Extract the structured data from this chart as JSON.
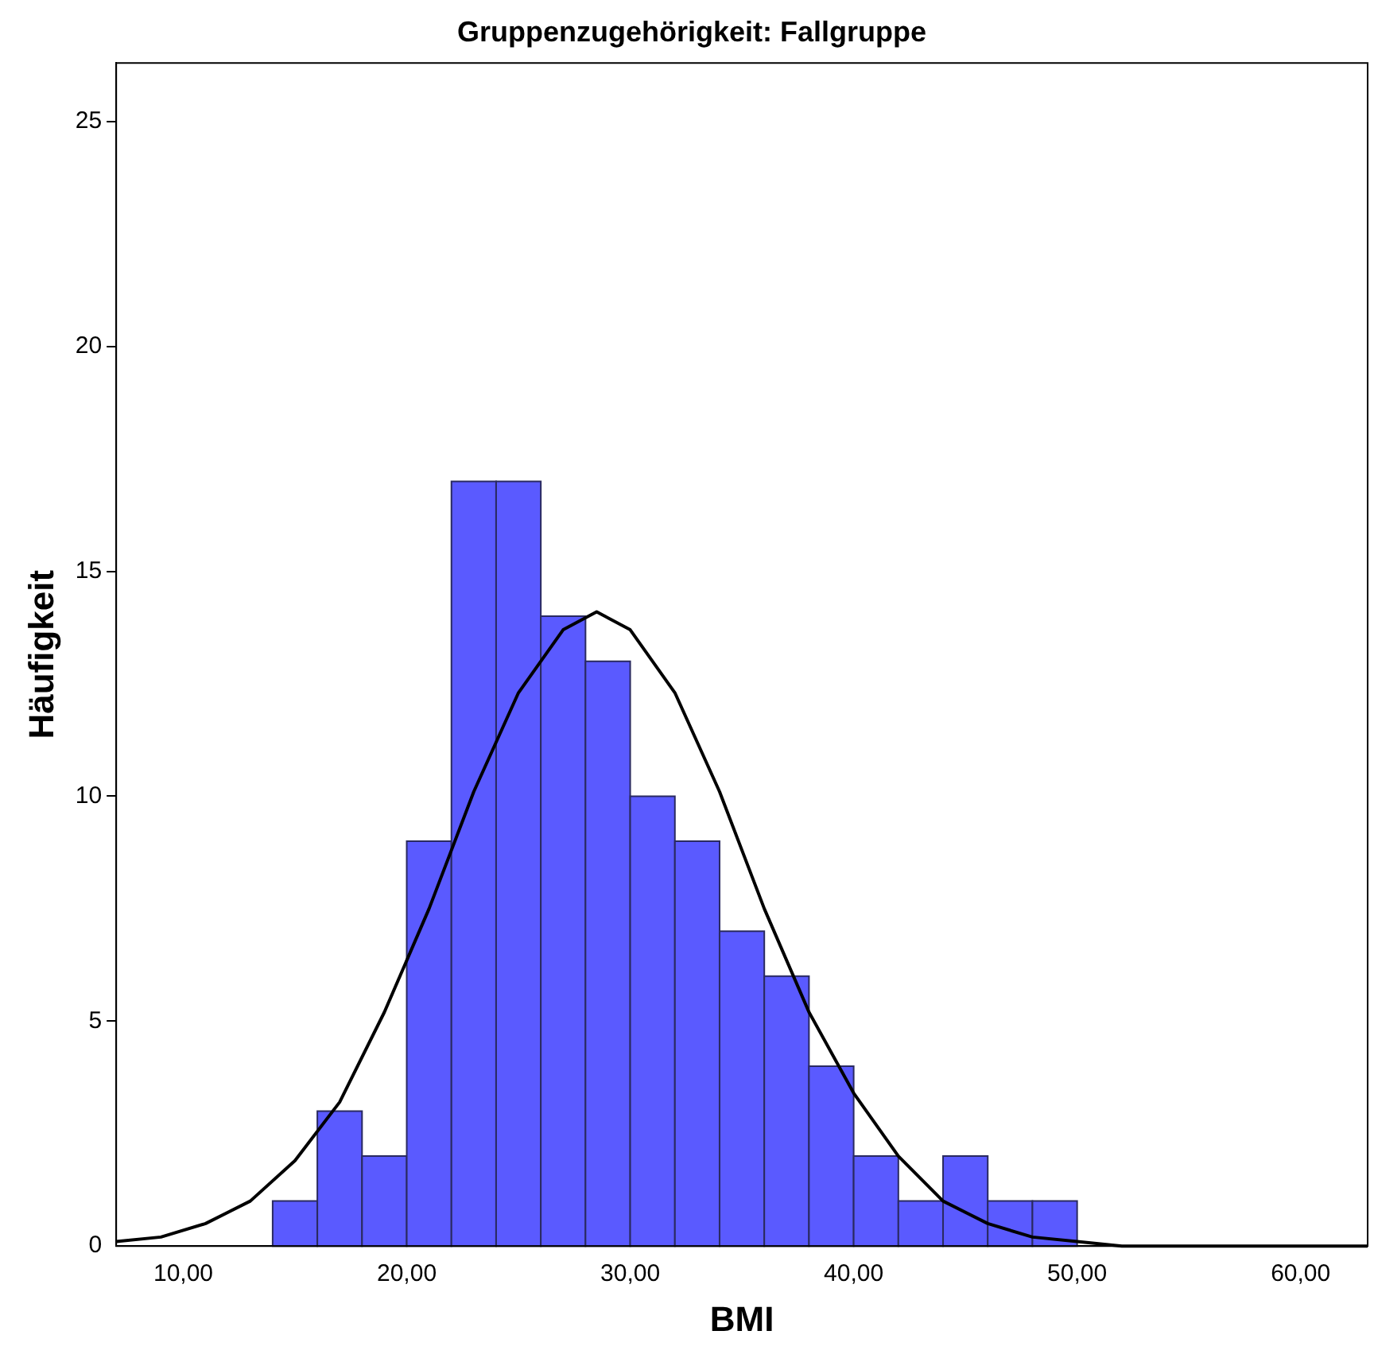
{
  "chart_data": {
    "type": "histogram",
    "title": "Gruppenzugehörigkeit: Fallgruppe",
    "xlabel": "BMI",
    "ylabel": "Häufigkeit",
    "bins": [
      14,
      16,
      18,
      20,
      22,
      24,
      26,
      28,
      30,
      32,
      34,
      36,
      38,
      40,
      42,
      44,
      46,
      48,
      50
    ],
    "values": [
      1,
      3,
      2,
      9,
      17,
      17,
      14,
      13,
      10,
      9,
      7,
      6,
      4,
      2,
      1,
      2,
      1,
      1
    ],
    "color": "#5a5aff",
    "xlim": [
      7,
      63
    ],
    "xticks": [
      {
        "value": 10,
        "label": "10,00"
      },
      {
        "value": 20,
        "label": "20,00"
      },
      {
        "value": 30,
        "label": "30,00"
      },
      {
        "value": 40,
        "label": "40,00"
      },
      {
        "value": 50,
        "label": "50,00"
      },
      {
        "value": 60,
        "label": "60,00"
      }
    ],
    "ylim": [
      0,
      26.3
    ],
    "yticks": [
      0,
      5,
      10,
      15,
      20,
      25
    ],
    "series": [
      {
        "type": "line",
        "color": "#000000",
        "x": [
          7,
          9,
          11,
          13,
          15,
          17,
          19,
          21,
          23,
          25,
          27,
          28.5,
          30,
          32,
          34,
          36,
          38,
          40,
          42,
          44,
          46,
          48,
          50,
          52,
          55,
          63
        ],
        "values": [
          0.1,
          0.2,
          0.5,
          1,
          1.9,
          3.2,
          5.2,
          7.5,
          10.1,
          12.3,
          13.7,
          14.1,
          13.7,
          12.3,
          10.1,
          7.5,
          5.2,
          3.4,
          2,
          1,
          0.5,
          0.2,
          0.1,
          0,
          0,
          0
        ]
      }
    ]
  }
}
